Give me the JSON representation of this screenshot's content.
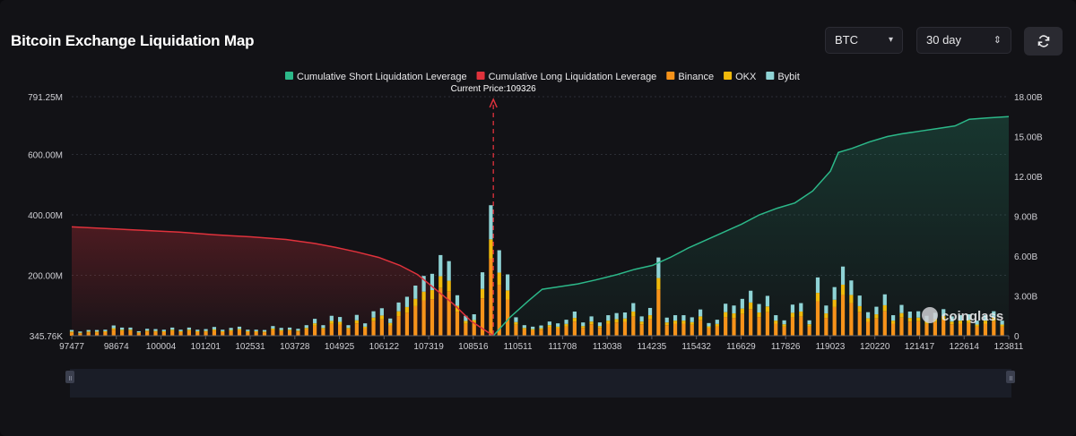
{
  "header": {
    "title": "Bitcoin Exchange Liquidation Map",
    "symbol_select": "BTC",
    "period_select": "30 day"
  },
  "watermark": "coinglass",
  "colors": {
    "binance": "#f7931a",
    "okx": "#f0b90b",
    "bybit": "#8fd3d5",
    "short_line": "#2cb889",
    "long_line": "#e0323c",
    "current_price": "#e0323c"
  },
  "chart_data": {
    "type": "bar",
    "legend": [
      {
        "key": "short",
        "label": "Cumulative Short Liquidation Leverage",
        "color": "#2cb889"
      },
      {
        "key": "long",
        "label": "Cumulative Long Liquidation Leverage",
        "color": "#e0323c"
      },
      {
        "key": "binance",
        "label": "Binance",
        "color": "#f7931a"
      },
      {
        "key": "okx",
        "label": "OKX",
        "color": "#f0b90b"
      },
      {
        "key": "bybit",
        "label": "Bybit",
        "color": "#8fd3d5"
      }
    ],
    "legend_position": "top-center",
    "current_price_label": "Current Price:109326",
    "current_price": 109326,
    "x_range": [
      97477,
      123811
    ],
    "x_ticks": [
      "97477",
      "98674",
      "100004",
      "101201",
      "102531",
      "103728",
      "104925",
      "106122",
      "107319",
      "108516",
      "110511",
      "111708",
      "113038",
      "114235",
      "115432",
      "116629",
      "117826",
      "119023",
      "120220",
      "121417",
      "122614",
      "123811"
    ],
    "y_left_ticks": [
      "345.76K",
      "200.00M",
      "400.00M",
      "600.00M",
      "791.25M"
    ],
    "y_left_tick_values": [
      0.34576,
      200,
      400,
      600,
      791.25
    ],
    "y_left_range": [
      0,
      791.25
    ],
    "y_right_ticks": [
      "0",
      "3.00B",
      "6.00B",
      "9.00B",
      "12.00B",
      "15.00B",
      "18.00B"
    ],
    "y_right_tick_values": [
      0,
      3,
      6,
      9,
      12,
      15,
      18
    ],
    "y_right_range": [
      0,
      18
    ],
    "grid": true,
    "bar_prices": [
      97477,
      97713,
      97948,
      98184,
      98419,
      98655,
      98891,
      99126,
      99362,
      99597,
      99833,
      100068,
      100304,
      100540,
      100775,
      101011,
      101246,
      101482,
      101717,
      101953,
      102189,
      102424,
      102660,
      102895,
      103131,
      103366,
      103602,
      103838,
      104073,
      104309,
      104544,
      104780,
      105015,
      105251,
      105487,
      105722,
      105958,
      106193,
      106429,
      106664,
      106900,
      107136,
      107371,
      107607,
      107842,
      108078,
      108313,
      108549,
      108785,
      109020,
      109256,
      109491,
      109727,
      109962,
      110198,
      110434,
      110669,
      110905,
      111140,
      111376,
      111611,
      111847,
      112083,
      112318,
      112554,
      112789,
      113025,
      113260,
      113496,
      113732,
      113967,
      114203,
      114438,
      114674,
      114909,
      115145,
      115381,
      115616,
      115852,
      116087,
      116323,
      116558,
      116794,
      117030,
      117265,
      117501,
      117736,
      117972,
      118207,
      118443,
      118679,
      118914,
      119150,
      119385,
      119621,
      119856,
      120092,
      120328,
      120563,
      120799,
      121034,
      121270,
      121505,
      121741,
      121977,
      122212,
      122448,
      122683,
      122919,
      123154,
      123390,
      123625
    ],
    "binance": [
      11,
      8,
      11,
      11,
      12,
      20,
      16,
      16,
      9,
      14,
      13,
      12,
      16,
      12,
      16,
      12,
      13,
      17,
      12,
      15,
      18,
      12,
      12,
      11,
      19,
      15,
      16,
      14,
      21,
      33,
      21,
      39,
      37,
      21,
      41,
      24,
      48,
      54,
      34,
      65,
      76,
      98,
      117,
      121,
      158,
      146,
      79,
      39,
      42,
      124,
      255,
      167,
      120,
      36,
      21,
      18,
      20,
      28,
      24,
      31,
      47,
      26,
      38,
      26,
      40,
      44,
      46,
      64,
      38,
      54,
      153,
      35,
      40,
      40,
      36,
      51,
      25,
      31,
      62,
      59,
      72,
      88,
      62,
      78,
      40,
      30,
      61,
      64,
      30,
      114,
      59,
      95,
      135,
      108,
      78,
      46,
      57,
      81,
      40,
      60,
      47,
      48,
      39,
      45,
      52,
      38,
      40,
      42,
      30,
      40,
      48,
      30
    ],
    "okx": [
      3,
      2,
      3,
      3,
      3,
      5,
      4,
      4,
      2,
      3,
      3,
      3,
      4,
      3,
      4,
      3,
      3,
      4,
      3,
      4,
      4,
      3,
      3,
      3,
      5,
      4,
      4,
      3,
      5,
      8,
      5,
      10,
      9,
      5,
      10,
      6,
      12,
      13,
      8,
      16,
      19,
      24,
      29,
      30,
      39,
      36,
      20,
      10,
      10,
      31,
      64,
      42,
      30,
      9,
      5,
      4,
      5,
      7,
      6,
      8,
      12,
      6,
      9,
      6,
      10,
      11,
      11,
      16,
      9,
      14,
      38,
      9,
      10,
      10,
      9,
      13,
      6,
      8,
      16,
      15,
      18,
      22,
      15,
      19,
      10,
      8,
      15,
      16,
      8,
      28,
      15,
      24,
      34,
      27,
      20,
      12,
      14,
      20,
      10,
      15,
      12,
      12,
      10,
      11,
      13,
      9,
      10,
      10,
      7,
      10,
      12,
      7
    ],
    "bybit": [
      5,
      4,
      5,
      5,
      5,
      9,
      7,
      7,
      4,
      6,
      6,
      5,
      7,
      5,
      7,
      5,
      6,
      8,
      5,
      7,
      8,
      5,
      5,
      5,
      8,
      7,
      7,
      6,
      9,
      15,
      9,
      17,
      16,
      9,
      18,
      11,
      21,
      24,
      15,
      29,
      34,
      44,
      52,
      54,
      70,
      65,
      35,
      17,
      19,
      55,
      113,
      74,
      53,
      16,
      9,
      8,
      9,
      12,
      11,
      14,
      21,
      12,
      17,
      12,
      18,
      20,
      20,
      28,
      17,
      24,
      68,
      16,
      18,
      18,
      16,
      23,
      11,
      14,
      28,
      26,
      32,
      39,
      28,
      35,
      18,
      13,
      27,
      28,
      13,
      51,
      26,
      42,
      60,
      48,
      35,
      20,
      25,
      36,
      18,
      27,
      21,
      21,
      17,
      20,
      23,
      17,
      18,
      19,
      13,
      18,
      21,
      13
    ],
    "short_cumulative": {
      "x": [
        109326,
        109800,
        110300,
        110700,
        111200,
        111700,
        112200,
        112800,
        113300,
        113800,
        114300,
        114800,
        115300,
        115800,
        116300,
        116800,
        117300,
        117800,
        118300,
        118800,
        119023,
        119400,
        119900,
        120400,
        120800,
        121300,
        121800,
        122300,
        122700,
        123200,
        123811
      ],
      "y": [
        0,
        1.4,
        2.6,
        3.5,
        3.7,
        3.9,
        4.2,
        4.6,
        5.0,
        5.3,
        5.9,
        6.6,
        7.2,
        7.8,
        8.4,
        9.1,
        9.6,
        10.0,
        10.9,
        12.4,
        13.8,
        14.1,
        14.6,
        15.0,
        15.2,
        15.4,
        15.6,
        15.8,
        16.3,
        16.4,
        16.5
      ]
    },
    "long_cumulative": {
      "x": [
        97477,
        99000,
        100500,
        101500,
        102500,
        103500,
        104300,
        104900,
        105500,
        106100,
        106700,
        107200,
        107700,
        108200,
        108700,
        109326
      ],
      "y": [
        8.2,
        8.0,
        7.8,
        7.6,
        7.45,
        7.25,
        6.95,
        6.65,
        6.3,
        5.9,
        5.3,
        4.6,
        3.5,
        2.4,
        1.1,
        0
      ]
    }
  }
}
